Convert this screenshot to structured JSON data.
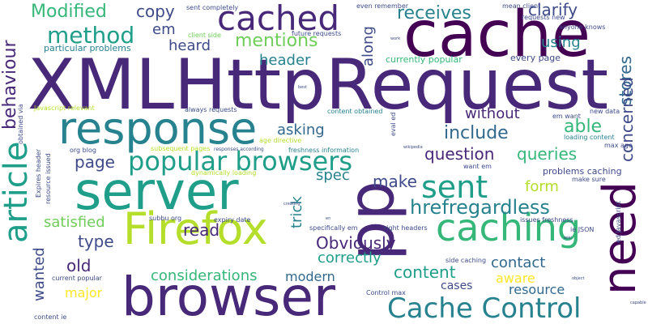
{
  "words": {
    "xmlhttprequest": "XMLHttpRequest",
    "cache": "cache",
    "browser": "browser",
    "server": "server",
    "response": "response",
    "firefox": "Firefox",
    "pp": "pp",
    "need": "need",
    "caching": "caching",
    "article": "article",
    "cached": "cached",
    "cache_control": "Cache Control",
    "popular_browsers": "popular browsers",
    "sent": "sent",
    "method": "method",
    "modified": "Modified",
    "copy": "copy",
    "receives": "receives",
    "clarify": "clarify",
    "mentions": "mentions",
    "heard": "heard",
    "em": "em",
    "using": "using",
    "header": "header",
    "along": "along",
    "behaviour": "behaviour",
    "stores": "stores",
    "concerned": "concerned",
    "able": "able",
    "include": "include",
    "without": "without",
    "asking": "asking",
    "page": "page",
    "question": "question",
    "queries": "queries",
    "spec": "spec",
    "make": "make",
    "form": "form",
    "trick": "trick",
    "hrefregardless": "hrefregardless",
    "satisfied": "satisfied",
    "read": "read",
    "type": "type",
    "obviously": "Obviously",
    "old": "old",
    "correctly": "correctly",
    "contact": "contact",
    "content": "content",
    "wanted": "wanted",
    "major": "major",
    "considerations": "considerations",
    "modern": "modern",
    "aware": "aware",
    "cases": "cases",
    "resource": "resource",
    "sent_completely": "sent completely",
    "even_remember": "even remember",
    "mean_client": "mean client",
    "requests_new": "requests new",
    "anyone_knows": "anyone knows",
    "client_side": "client side",
    "future_requests": "future requests",
    "particular_problems": "particular problems",
    "currently_popular": "currently popular",
    "every_page": "every page",
    "javascript_relevant": "Javascript relevant",
    "always_requests": "always requests",
    "content_obtained": "content obtained",
    "new_data": "new data",
    "em_want": "em want",
    "age_directive": "age directive",
    "loading_content": "loading content",
    "max_age": "max age",
    "org_blog": "org blog",
    "freshness_information": "freshness information",
    "subsequent_pages": "subsequent pages",
    "responses_according": "responses according",
    "want_em": "want em",
    "problems_caching": "problems caching",
    "dynamically_loading": "dynamically loading",
    "make_sure": "make sure",
    "subbu_org": "subbu org",
    "expiry_date": "expiry date",
    "issues_freshness": "issues freshness",
    "ie_json": "ie JSON",
    "specifically_em": "specifically em",
    "right_headers": "right headers",
    "side_caching": "side caching",
    "current_popular": "current popular",
    "control_max": "Control max",
    "content_ie": "content ie",
    "obtained_via": "obtained via",
    "expires_header": "Expires header",
    "resource_issued": "resource issued",
    "eval_ed": "eval ed",
    "ed_javascript": "ed Javascript",
    "wikipedia": "wikipedia",
    "creating": "creating",
    "en": "en",
    "best": "best",
    "wiki": "wiki",
    "object": "object",
    "capable": "capable",
    "work": "work"
  }
}
